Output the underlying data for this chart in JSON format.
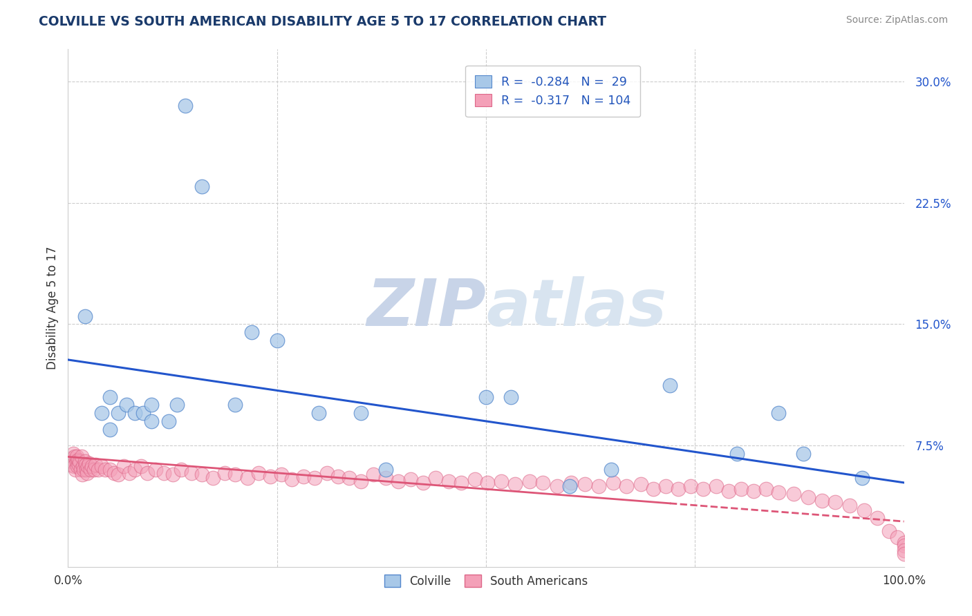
{
  "title": "COLVILLE VS SOUTH AMERICAN DISABILITY AGE 5 TO 17 CORRELATION CHART",
  "source": "Source: ZipAtlas.com",
  "ylabel": "Disability Age 5 to 17",
  "xlim": [
    0.0,
    1.0
  ],
  "ylim": [
    0.0,
    0.32
  ],
  "yticks": [
    0.075,
    0.15,
    0.225,
    0.3
  ],
  "ytick_labels": [
    "7.5%",
    "15.0%",
    "22.5%",
    "30.0%"
  ],
  "xtick_vals": [
    0.0,
    1.0
  ],
  "xtick_labels": [
    "0.0%",
    "100.0%"
  ],
  "colville_R": -0.284,
  "colville_N": 29,
  "sa_R": -0.317,
  "sa_N": 104,
  "colville_color": "#a8c8e8",
  "colville_edge": "#5588cc",
  "sa_color": "#f4a0b8",
  "sa_edge": "#dd6688",
  "colville_line_color": "#2255cc",
  "sa_line_color": "#dd5577",
  "background_color": "#ffffff",
  "grid_color": "#cccccc",
  "title_color": "#1a3a6b",
  "axis_label_color": "#333333",
  "legend_R_color": "#cc2222",
  "legend_N_color": "#2255bb",
  "watermark_zip_color": "#c8d4e8",
  "watermark_atlas_color": "#d8e4f0",
  "colville_x": [
    0.02,
    0.04,
    0.05,
    0.05,
    0.06,
    0.07,
    0.08,
    0.09,
    0.1,
    0.1,
    0.12,
    0.13,
    0.14,
    0.16,
    0.2,
    0.22,
    0.25,
    0.3,
    0.35,
    0.38,
    0.5,
    0.53,
    0.6,
    0.65,
    0.72,
    0.8,
    0.85,
    0.88,
    0.95
  ],
  "colville_y": [
    0.155,
    0.095,
    0.105,
    0.085,
    0.095,
    0.1,
    0.095,
    0.095,
    0.09,
    0.1,
    0.09,
    0.1,
    0.285,
    0.235,
    0.1,
    0.145,
    0.14,
    0.095,
    0.095,
    0.06,
    0.105,
    0.105,
    0.05,
    0.06,
    0.112,
    0.07,
    0.095,
    0.07,
    0.055
  ],
  "sa_x": [
    0.003,
    0.004,
    0.005,
    0.006,
    0.007,
    0.008,
    0.009,
    0.01,
    0.01,
    0.011,
    0.012,
    0.013,
    0.014,
    0.015,
    0.016,
    0.017,
    0.018,
    0.019,
    0.02,
    0.021,
    0.022,
    0.023,
    0.024,
    0.025,
    0.027,
    0.029,
    0.031,
    0.033,
    0.036,
    0.04,
    0.044,
    0.05,
    0.055,
    0.06,
    0.067,
    0.073,
    0.08,
    0.087,
    0.095,
    0.105,
    0.115,
    0.125,
    0.135,
    0.148,
    0.16,
    0.173,
    0.187,
    0.2,
    0.215,
    0.228,
    0.242,
    0.255,
    0.268,
    0.282,
    0.295,
    0.31,
    0.323,
    0.336,
    0.35,
    0.365,
    0.38,
    0.395,
    0.41,
    0.425,
    0.44,
    0.455,
    0.47,
    0.487,
    0.502,
    0.518,
    0.535,
    0.552,
    0.568,
    0.585,
    0.602,
    0.618,
    0.635,
    0.652,
    0.668,
    0.685,
    0.7,
    0.715,
    0.73,
    0.745,
    0.76,
    0.775,
    0.79,
    0.805,
    0.82,
    0.835,
    0.85,
    0.868,
    0.885,
    0.902,
    0.918,
    0.935,
    0.952,
    0.968,
    0.982,
    0.992,
    1.0,
    1.0,
    1.0,
    1.0
  ],
  "sa_y": [
    0.067,
    0.063,
    0.065,
    0.07,
    0.062,
    0.068,
    0.06,
    0.065,
    0.068,
    0.062,
    0.066,
    0.063,
    0.065,
    0.06,
    0.068,
    0.057,
    0.062,
    0.06,
    0.065,
    0.063,
    0.06,
    0.058,
    0.062,
    0.064,
    0.06,
    0.062,
    0.06,
    0.063,
    0.06,
    0.062,
    0.06,
    0.06,
    0.058,
    0.057,
    0.062,
    0.058,
    0.06,
    0.062,
    0.058,
    0.06,
    0.058,
    0.057,
    0.06,
    0.058,
    0.057,
    0.055,
    0.058,
    0.057,
    0.055,
    0.058,
    0.056,
    0.057,
    0.054,
    0.056,
    0.055,
    0.058,
    0.056,
    0.055,
    0.053,
    0.057,
    0.055,
    0.053,
    0.054,
    0.052,
    0.055,
    0.053,
    0.052,
    0.054,
    0.052,
    0.053,
    0.051,
    0.053,
    0.052,
    0.05,
    0.052,
    0.051,
    0.05,
    0.052,
    0.05,
    0.051,
    0.048,
    0.05,
    0.048,
    0.05,
    0.048,
    0.05,
    0.047,
    0.048,
    0.047,
    0.048,
    0.046,
    0.045,
    0.043,
    0.041,
    0.04,
    0.038,
    0.035,
    0.03,
    0.022,
    0.018,
    0.015,
    0.013,
    0.01,
    0.008
  ],
  "colville_trendline": [
    0.128,
    0.052
  ],
  "sa_trendline_solid_end": 0.72,
  "sa_trendline": [
    0.068,
    0.028
  ]
}
